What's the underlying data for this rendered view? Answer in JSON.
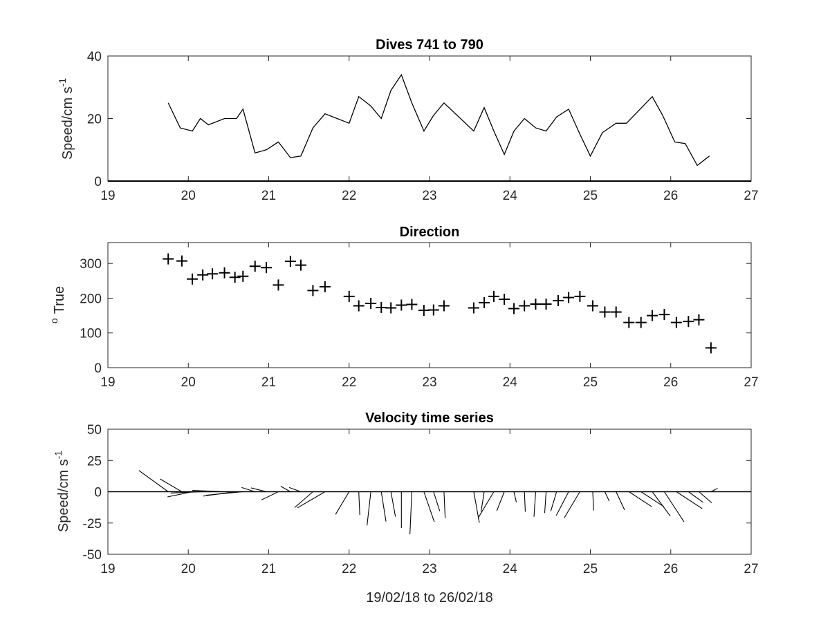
{
  "chart_data": [
    {
      "type": "line",
      "title": "Dives 741 to 790",
      "ylabel": "Speed/cm s",
      "ylabel_superscript": "-1",
      "xlim": [
        19,
        27
      ],
      "ylim": [
        0,
        40
      ],
      "xticks": [
        "19",
        "20",
        "21",
        "22",
        "23",
        "24",
        "25",
        "26",
        "27"
      ],
      "yticks": [
        "0",
        "20",
        "40"
      ],
      "grid": false,
      "series": [
        {
          "x": [
            19.75,
            19.9,
            20.05,
            20.15,
            20.25,
            20.45,
            20.6,
            20.68,
            20.83,
            20.97,
            21.12,
            21.27,
            21.4,
            21.55,
            21.7,
            21.85,
            22.0,
            22.12,
            22.27,
            22.4,
            22.52,
            22.65,
            22.78,
            22.93,
            23.05,
            23.18,
            23.55,
            23.68,
            23.8,
            23.93,
            24.05,
            24.18,
            24.32,
            24.45,
            24.58,
            24.73,
            24.87,
            25.0,
            25.15,
            25.32,
            25.45,
            25.6,
            25.77,
            25.9,
            26.05,
            26.18,
            26.33,
            26.48
          ],
          "y": [
            25,
            17,
            16,
            20,
            18,
            20,
            20,
            23,
            9,
            10,
            12.5,
            7.5,
            8,
            17,
            21.5,
            20,
            18.5,
            27,
            24,
            20,
            29,
            34,
            25,
            16,
            21,
            25,
            16,
            23.5,
            16,
            8.5,
            16,
            20,
            17,
            16,
            20.5,
            23,
            15,
            8,
            15.5,
            18.5,
            18.5,
            22.5,
            27,
            21,
            12.5,
            12,
            5,
            8
          ]
        }
      ]
    },
    {
      "type": "scatter",
      "title": "Direction",
      "ylabel": "True",
      "ylabel_prefix": "o",
      "xlim": [
        19,
        27
      ],
      "ylim": [
        0,
        360
      ],
      "xticks": [
        "19",
        "20",
        "21",
        "22",
        "23",
        "24",
        "25",
        "26",
        "27"
      ],
      "yticks": [
        "0",
        "100",
        "200",
        "300"
      ],
      "marker": "+",
      "grid": false,
      "series": [
        {
          "x": [
            19.75,
            19.92,
            20.05,
            20.18,
            20.3,
            20.45,
            20.58,
            20.68,
            20.83,
            20.97,
            21.12,
            21.27,
            21.4,
            21.55,
            21.7,
            22.0,
            22.12,
            22.27,
            22.4,
            22.52,
            22.65,
            22.78,
            22.93,
            23.05,
            23.18,
            23.55,
            23.68,
            23.8,
            23.93,
            24.05,
            24.18,
            24.32,
            24.45,
            24.6,
            24.73,
            24.87,
            25.03,
            25.18,
            25.32,
            25.48,
            25.63,
            25.77,
            25.92,
            26.07,
            26.22,
            26.35,
            26.5
          ],
          "y": [
            313,
            307,
            255,
            267,
            270,
            273,
            260,
            263,
            292,
            288,
            238,
            306,
            295,
            222,
            233,
            205,
            178,
            185,
            173,
            172,
            180,
            182,
            165,
            166,
            178,
            172,
            187,
            205,
            197,
            170,
            178,
            183,
            183,
            193,
            202,
            205,
            178,
            160,
            160,
            130,
            130,
            150,
            153,
            130,
            133,
            138,
            57
          ]
        }
      ]
    },
    {
      "type": "line",
      "subtype": "quiver / stick plot",
      "title": "Velocity time series",
      "ylabel": "Speed/cm s",
      "ylabel_superscript": "-1",
      "xlabel": "19/02/18 to 26/02/18",
      "xlim": [
        19,
        27
      ],
      "ylim": [
        -50,
        50
      ],
      "xticks": [
        "19",
        "20",
        "21",
        "22",
        "23",
        "24",
        "25",
        "26",
        "27"
      ],
      "yticks": [
        "-50",
        "-25",
        "0",
        "25",
        "50"
      ],
      "grid": false,
      "sticks": {
        "x": [
          19.75,
          19.92,
          20.05,
          20.18,
          20.3,
          20.45,
          20.58,
          20.68,
          20.83,
          20.97,
          21.12,
          21.27,
          21.4,
          21.55,
          21.7,
          22.0,
          22.12,
          22.27,
          22.4,
          22.52,
          22.65,
          22.78,
          22.93,
          23.05,
          23.18,
          23.55,
          23.68,
          23.8,
          23.93,
          24.05,
          24.18,
          24.32,
          24.45,
          24.58,
          24.73,
          24.87,
          25.03,
          25.18,
          25.32,
          25.48,
          25.63,
          25.77,
          25.92,
          26.07,
          26.22,
          26.35,
          26.5
        ],
        "u": [
          -0.35,
          -0.28,
          0.22,
          0.22,
          0.16,
          0.2,
          0.2,
          -0.25,
          -0.17,
          -0.33,
          -0.1,
          -0.12,
          -0.11,
          0.18,
          0.18,
          0.15,
          0.2,
          0.15,
          0.1,
          0.05,
          -0.02,
          0.05,
          0.05,
          0.06,
          0.06,
          0.05,
          0.05,
          0.04,
          0.04,
          0.03,
          0.01,
          0.01,
          0.0,
          0.02,
          0.02,
          0.03,
          0.02,
          0.03,
          0.03,
          0.04,
          0.05,
          0.06,
          0.06,
          0.06,
          0.07,
          0.08,
          0.09
        ]
      }
    }
  ]
}
